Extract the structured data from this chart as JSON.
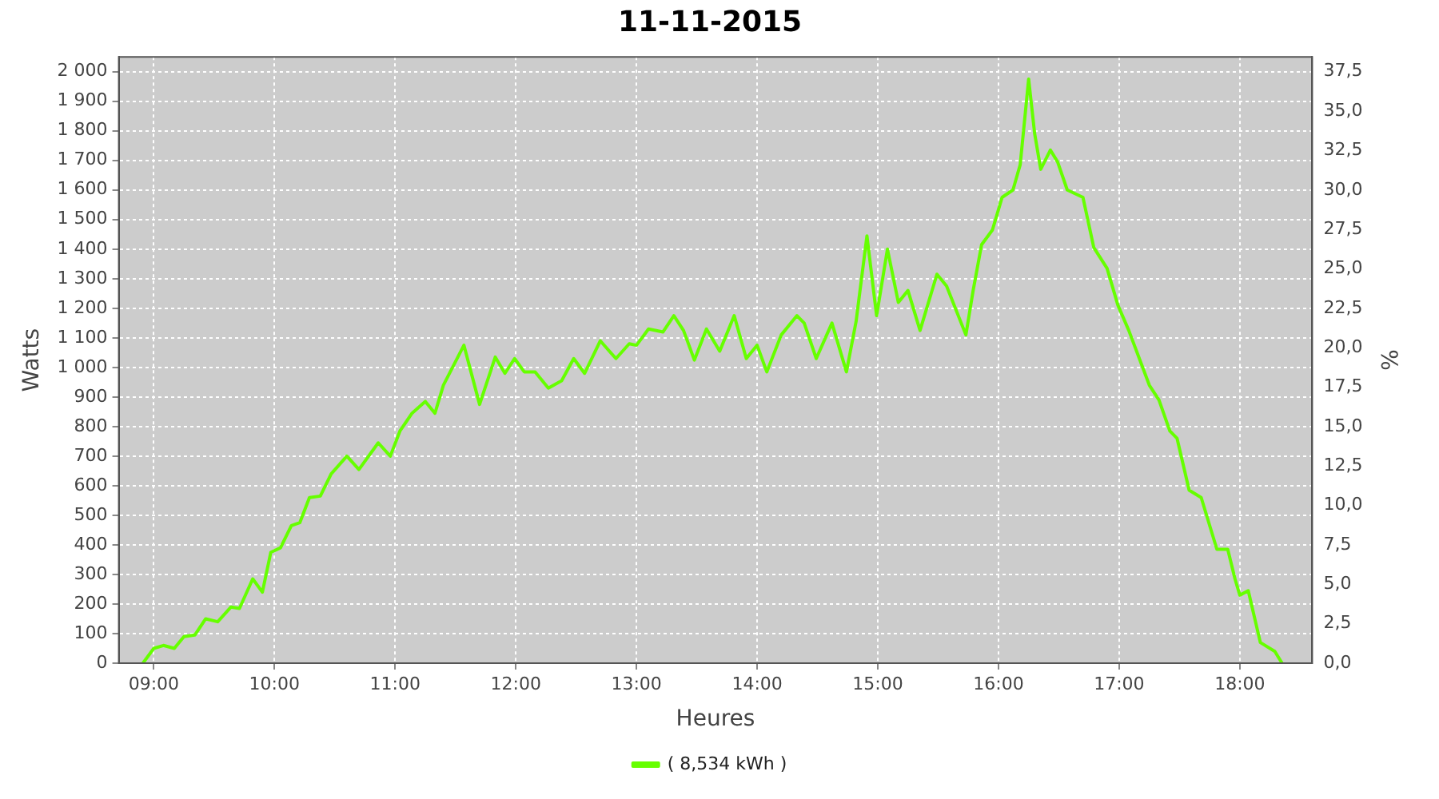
{
  "chart_data": {
    "type": "line",
    "title": "11-11-2015",
    "xlabel": "Heures",
    "ylabel": "Watts",
    "y2label": "%",
    "xlim": [
      8.71,
      18.6
    ],
    "xticks": [
      {
        "value": 9,
        "label": "09:00"
      },
      {
        "value": 10,
        "label": "10:00"
      },
      {
        "value": 11,
        "label": "11:00"
      },
      {
        "value": 12,
        "label": "12:00"
      },
      {
        "value": 13,
        "label": "13:00"
      },
      {
        "value": 14,
        "label": "14:00"
      },
      {
        "value": 15,
        "label": "15:00"
      },
      {
        "value": 16,
        "label": "16:00"
      },
      {
        "value": 17,
        "label": "17:00"
      },
      {
        "value": 18,
        "label": "18:00"
      }
    ],
    "ylim": [
      0,
      2050
    ],
    "yticks": [
      0,
      100,
      200,
      300,
      400,
      500,
      600,
      700,
      800,
      900,
      {
        "value": 1000,
        "label": "1 000"
      },
      {
        "value": 1100,
        "label": "1 100"
      },
      {
        "value": 1200,
        "label": "1 200"
      },
      {
        "value": 1300,
        "label": "1 300"
      },
      {
        "value": 1400,
        "label": "1 400"
      },
      {
        "value": 1500,
        "label": "1 500"
      },
      {
        "value": 1600,
        "label": "1 600"
      },
      {
        "value": 1700,
        "label": "1 700"
      },
      {
        "value": 1800,
        "label": "1 800"
      },
      {
        "value": 1900,
        "label": "1 900"
      },
      {
        "value": 2000,
        "label": "2 000"
      }
    ],
    "y2lim": [
      0,
      38.44
    ],
    "y2ticks": [
      {
        "value": 0,
        "label": "0,0"
      },
      {
        "value": 2.5,
        "label": "2,5"
      },
      {
        "value": 5,
        "label": "5,0"
      },
      {
        "value": 7.5,
        "label": "7,5"
      },
      {
        "value": 10,
        "label": "10,0"
      },
      {
        "value": 12.5,
        "label": "12,5"
      },
      {
        "value": 15,
        "label": "15,0"
      },
      {
        "value": 17.5,
        "label": "17,5"
      },
      {
        "value": 20,
        "label": "20,0"
      },
      {
        "value": 22.5,
        "label": "22,5"
      },
      {
        "value": 25,
        "label": "25,0"
      },
      {
        "value": 27.5,
        "label": "27,5"
      },
      {
        "value": 30,
        "label": "30,0"
      },
      {
        "value": 32.5,
        "label": "32,5"
      },
      {
        "value": 35,
        "label": "35,0"
      },
      {
        "value": 37.5,
        "label": "37,5"
      }
    ],
    "grid": true,
    "legend": "bottom",
    "marker": "none",
    "line_style": "solid",
    "series": [
      {
        "name": "( 8,534 kWh )",
        "color": "#66ff00",
        "x": [
          8.91,
          9.0,
          9.08,
          9.17,
          9.25,
          9.34,
          9.43,
          9.53,
          9.64,
          9.71,
          9.82,
          9.9,
          9.97,
          10.05,
          10.14,
          10.21,
          10.29,
          10.38,
          10.47,
          10.6,
          10.7,
          10.86,
          10.96,
          11.04,
          11.14,
          11.25,
          11.33,
          11.4,
          11.57,
          11.7,
          11.83,
          11.91,
          11.99,
          12.07,
          12.16,
          12.27,
          12.38,
          12.48,
          12.57,
          12.7,
          12.83,
          12.94,
          13.0,
          13.1,
          13.22,
          13.31,
          13.39,
          13.48,
          13.58,
          13.69,
          13.81,
          13.91,
          14.0,
          14.08,
          14.2,
          14.33,
          14.39,
          14.49,
          14.62,
          14.74,
          14.82,
          14.91,
          14.99,
          15.08,
          15.17,
          15.25,
          15.35,
          15.49,
          15.57,
          15.73,
          15.79,
          15.86,
          15.95,
          16.03,
          16.12,
          16.18,
          16.25,
          16.3,
          16.35,
          16.43,
          16.49,
          16.57,
          16.7,
          16.79,
          16.9,
          16.99,
          17.08,
          17.25,
          17.33,
          17.42,
          17.48,
          17.58,
          17.68,
          17.81,
          17.9,
          17.96,
          18.0,
          18.07,
          18.17,
          18.29,
          18.35
        ],
        "values": [
          0,
          50,
          60,
          50,
          90,
          95,
          150,
          140,
          190,
          185,
          285,
          240,
          375,
          390,
          465,
          475,
          560,
          565,
          640,
          700,
          655,
          745,
          700,
          785,
          845,
          885,
          845,
          940,
          1075,
          875,
          1035,
          980,
          1030,
          985,
          985,
          930,
          955,
          1030,
          980,
          1090,
          1030,
          1080,
          1075,
          1130,
          1120,
          1175,
          1125,
          1025,
          1130,
          1055,
          1175,
          1030,
          1075,
          985,
          1110,
          1175,
          1150,
          1030,
          1150,
          985,
          1155,
          1445,
          1175,
          1400,
          1220,
          1260,
          1125,
          1315,
          1275,
          1110,
          1260,
          1415,
          1465,
          1575,
          1600,
          1685,
          1975,
          1790,
          1670,
          1735,
          1695,
          1600,
          1575,
          1405,
          1335,
          1210,
          1125,
          940,
          890,
          785,
          760,
          585,
          560,
          385,
          385,
          285,
          230,
          245,
          70,
          40,
          0
        ]
      }
    ]
  }
}
